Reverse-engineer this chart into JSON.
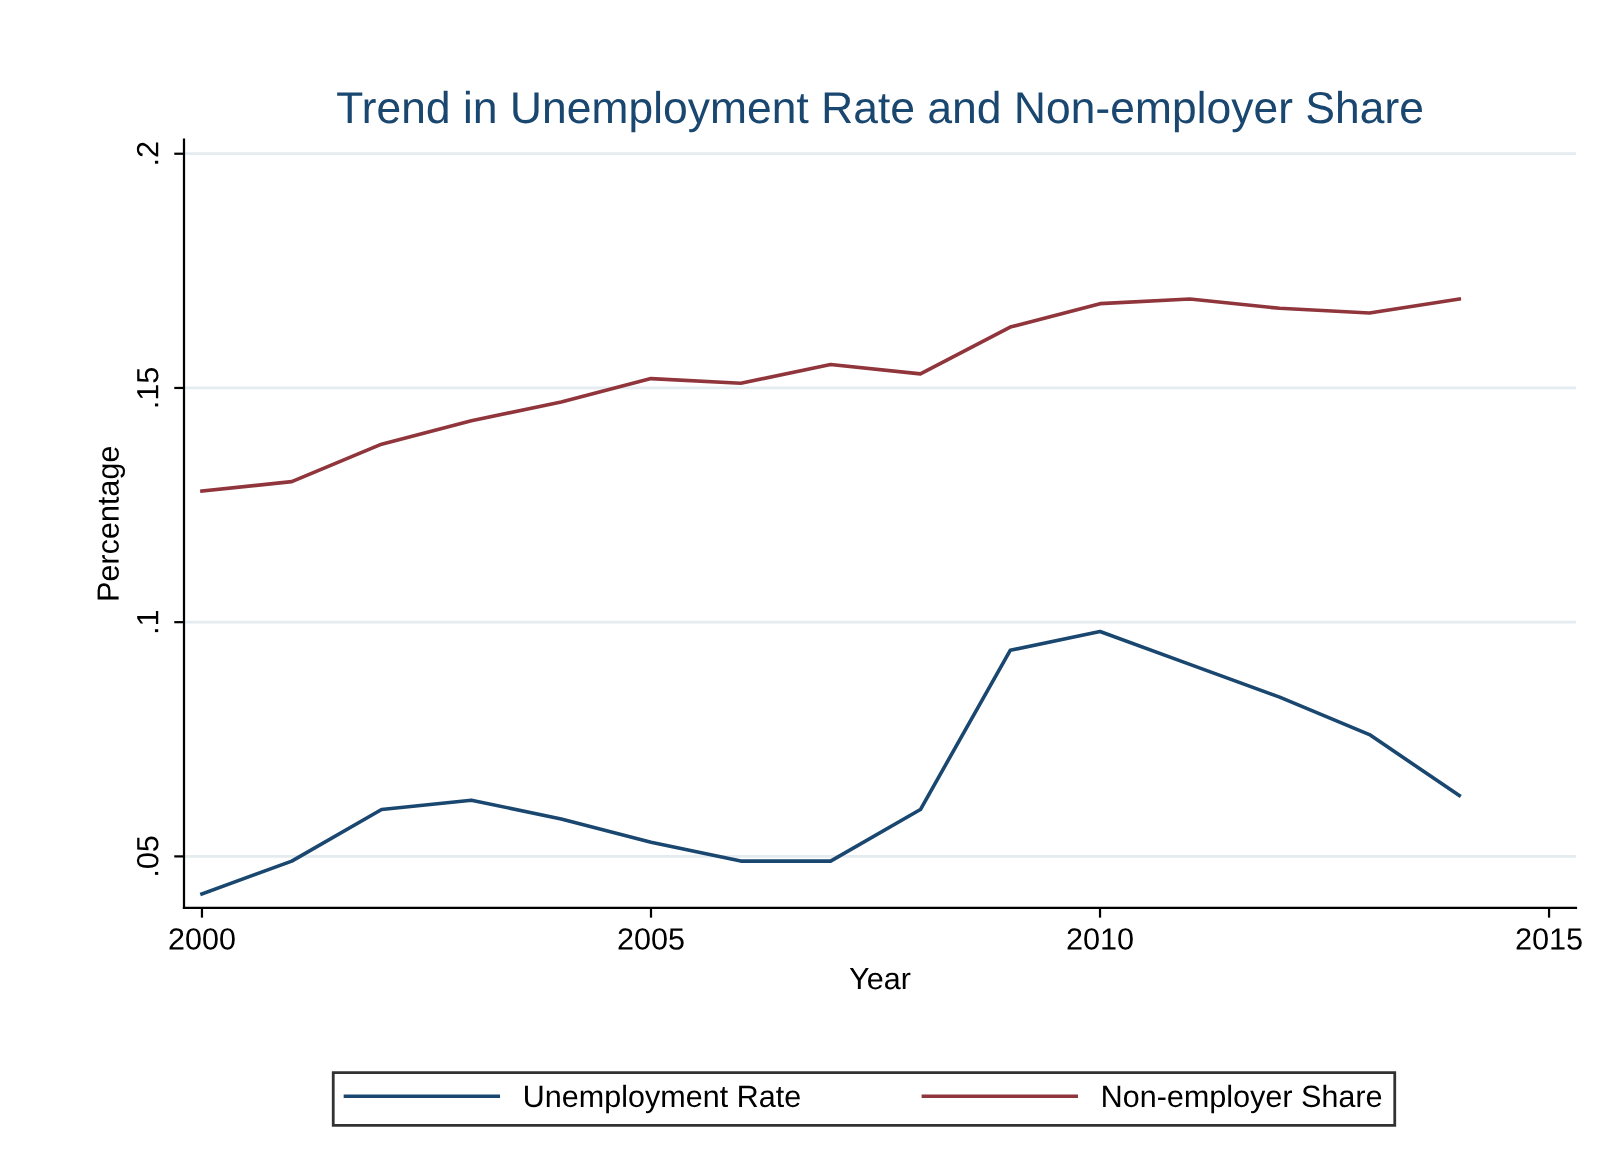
{
  "chart_data": {
    "type": "line",
    "title": "Trend in Unemployment Rate and Non-employer Share",
    "xlabel": "Year",
    "ylabel": "Percentage",
    "x": [
      2000,
      2001,
      2002,
      2003,
      2004,
      2005,
      2006,
      2007,
      2008,
      2009,
      2010,
      2011,
      2012,
      2013,
      2014
    ],
    "series": [
      {
        "name": "Unemployment Rate",
        "color": "#1a476f",
        "values": [
          0.042,
          0.049,
          0.06,
          0.062,
          0.058,
          0.053,
          0.049,
          0.049,
          0.06,
          0.094,
          0.098,
          0.091,
          0.084,
          0.076,
          0.063
        ]
      },
      {
        "name": "Non-employer Share",
        "color": "#90353b",
        "values": [
          0.128,
          0.13,
          0.138,
          0.143,
          0.147,
          0.152,
          0.151,
          0.155,
          0.153,
          0.163,
          0.168,
          0.169,
          0.167,
          0.166,
          0.169
        ]
      }
    ],
    "xlim": [
      1999.8,
      2015.3
    ],
    "xticks": [
      2000,
      2005,
      2010,
      2015
    ],
    "ylim": [
      0.039,
      0.203
    ],
    "yticks": [
      {
        "value": 0.05,
        "label": ".05"
      },
      {
        "value": 0.1,
        "label": ".1"
      },
      {
        "value": 0.15,
        "label": ".15"
      },
      {
        "value": 0.2,
        "label": ".2"
      }
    ],
    "grid": "y",
    "legend": "bottom",
    "marker": "none",
    "line_style": "solid"
  }
}
